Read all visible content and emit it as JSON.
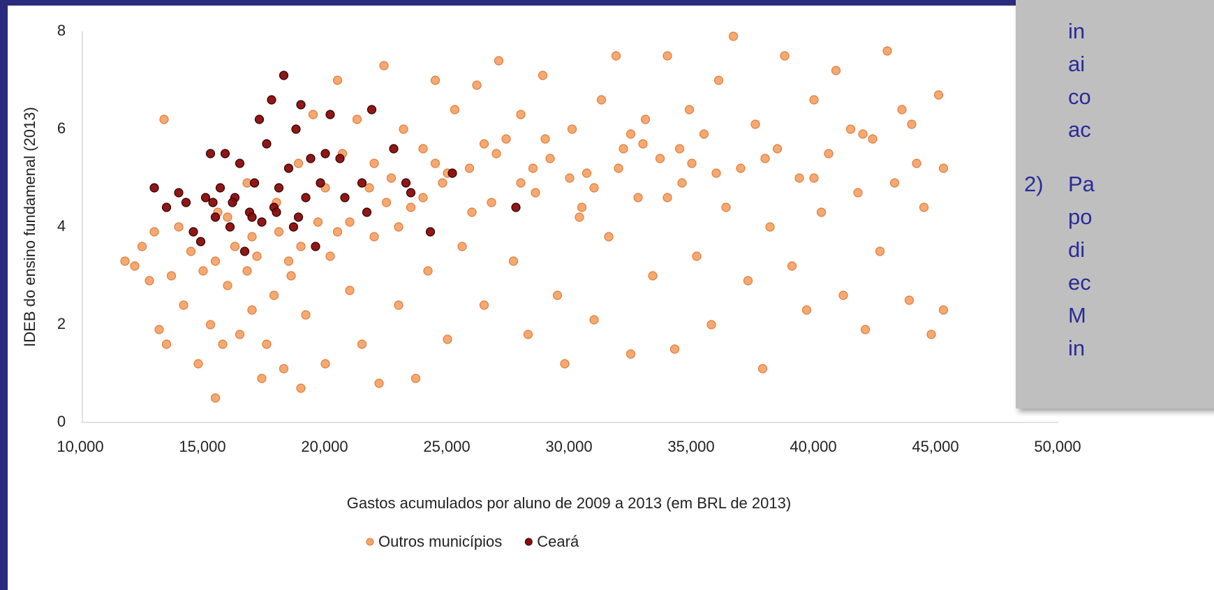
{
  "chart_data": {
    "type": "scatter",
    "x_label": "Gastos acumulados por aluno de 2009 a 2013 (em BRL de 2013)",
    "y_label": "IDEB do ensino fundamenal (2013)",
    "xlim": [
      10000,
      50000
    ],
    "xticks": [
      {
        "value": 10000,
        "label": "10,000"
      },
      {
        "value": 15000,
        "label": "15,000"
      },
      {
        "value": 20000,
        "label": "20,000"
      },
      {
        "value": 25000,
        "label": "25,000"
      },
      {
        "value": 30000,
        "label": "30,000"
      },
      {
        "value": 35000,
        "label": "35,000"
      },
      {
        "value": 40000,
        "label": "40,000"
      },
      {
        "value": 45000,
        "label": "45,000"
      },
      {
        "value": 50000,
        "label": "50,000"
      }
    ],
    "ylim": [
      0,
      8
    ],
    "yticks": [
      0,
      2,
      4,
      6,
      8
    ],
    "grid": false,
    "legend": "bottom",
    "series": [
      {
        "name": "Outros municípios",
        "color": "#f4a46a",
        "x": [
          11800,
          12200,
          12500,
          12800,
          13000,
          13200,
          13400,
          13500,
          13700,
          14000,
          14200,
          14500,
          14800,
          15000,
          15300,
          15500,
          15600,
          15800,
          16000,
          16300,
          16500,
          16800,
          17000,
          17200,
          17400,
          17600,
          17900,
          18100,
          18300,
          18600,
          18900,
          19000,
          19200,
          19500,
          19700,
          20000,
          20200,
          20500,
          20700,
          21000,
          21300,
          21500,
          21800,
          22000,
          22200,
          22400,
          22700,
          23000,
          23200,
          23500,
          23700,
          24000,
          24200,
          24500,
          24800,
          25000,
          25300,
          25600,
          25900,
          26200,
          26500,
          26800,
          27100,
          27400,
          27700,
          28000,
          28300,
          28600,
          28900,
          29200,
          29500,
          29800,
          30100,
          30400,
          30700,
          31000,
          31300,
          31600,
          31900,
          32200,
          32500,
          32800,
          33100,
          33400,
          33700,
          34000,
          34300,
          34600,
          34900,
          35200,
          35500,
          35800,
          36100,
          36400,
          36700,
          37000,
          37300,
          37600,
          37900,
          38200,
          38500,
          38800,
          39100,
          39400,
          39700,
          40000,
          40300,
          40600,
          40900,
          41200,
          41500,
          41800,
          42100,
          42400,
          42700,
          43000,
          43300,
          43600,
          43900,
          44200,
          44500,
          44800,
          45100,
          45300,
          45300,
          16000,
          17000,
          18000,
          19000,
          20000,
          21000,
          22000,
          23000,
          24000,
          25000,
          26000,
          27000,
          28000,
          29000,
          30000,
          31000,
          32000,
          33000,
          34000,
          35000,
          15500,
          16800,
          18500,
          20500,
          22500,
          24500,
          26500,
          28500,
          30500,
          32500,
          34500,
          36000,
          38000,
          40000,
          42000,
          44000
        ],
        "values": [
          3.3,
          3.2,
          3.6,
          2.9,
          3.9,
          1.9,
          6.2,
          1.6,
          3.0,
          4.0,
          2.4,
          3.5,
          1.2,
          3.1,
          2.0,
          0.5,
          4.3,
          1.6,
          2.8,
          3.6,
          1.8,
          4.9,
          2.3,
          3.4,
          0.9,
          1.6,
          2.6,
          3.9,
          1.1,
          3.0,
          5.3,
          0.7,
          2.2,
          6.3,
          4.1,
          1.2,
          3.4,
          7.0,
          5.5,
          2.7,
          6.2,
          1.6,
          4.8,
          3.8,
          0.8,
          7.3,
          5.0,
          2.4,
          6.0,
          4.4,
          0.9,
          5.6,
          3.1,
          7.0,
          4.9,
          1.7,
          6.4,
          3.6,
          5.2,
          6.9,
          2.4,
          4.5,
          7.4,
          5.8,
          3.3,
          6.3,
          1.8,
          4.7,
          7.1,
          5.4,
          2.6,
          1.2,
          6.0,
          4.2,
          5.1,
          2.1,
          6.6,
          3.8,
          7.5,
          5.6,
          1.4,
          4.6,
          6.2,
          3.0,
          5.4,
          7.5,
          1.5,
          4.9,
          6.4,
          3.4,
          5.9,
          2.0,
          7.0,
          4.4,
          7.9,
          5.2,
          2.9,
          6.1,
          1.1,
          4.0,
          5.6,
          7.5,
          3.2,
          5.0,
          2.3,
          6.6,
          4.3,
          5.5,
          7.2,
          2.6,
          6.0,
          4.7,
          1.9,
          5.8,
          3.5,
          7.6,
          4.9,
          6.4,
          2.5,
          5.3,
          4.4,
          1.8,
          6.7,
          2.3,
          5.2,
          4.2,
          3.8,
          4.5,
          3.6,
          4.8,
          4.1,
          5.3,
          4.0,
          4.6,
          5.1,
          4.3,
          5.5,
          4.9,
          5.8,
          5.0,
          4.8,
          5.2,
          5.7,
          4.6,
          5.3,
          3.3,
          3.1,
          3.3,
          3.9,
          4.5,
          5.3,
          5.7,
          5.2,
          4.4,
          5.9,
          5.6,
          5.1,
          5.4,
          5.0,
          5.9,
          6.1
        ]
      },
      {
        "name": "Ceará",
        "color": "#8b0a0a",
        "x": [
          13000,
          13500,
          14000,
          14300,
          14600,
          14900,
          15100,
          15300,
          15500,
          15700,
          15900,
          16100,
          16300,
          16500,
          16700,
          16900,
          17100,
          17300,
          17400,
          17600,
          17800,
          17900,
          18100,
          18300,
          18500,
          18700,
          18800,
          19000,
          19200,
          19400,
          19600,
          19800,
          20000,
          20200,
          20600,
          20800,
          21500,
          21700,
          21900,
          22800,
          23300,
          23500,
          24300,
          25200,
          27800,
          16200,
          17000,
          18000,
          18900,
          15400
        ],
        "values": [
          4.8,
          4.4,
          4.7,
          4.5,
          3.9,
          3.7,
          4.6,
          5.5,
          4.2,
          4.8,
          5.5,
          4.0,
          4.6,
          5.3,
          3.5,
          4.3,
          4.9,
          6.2,
          4.1,
          5.7,
          6.6,
          4.4,
          4.8,
          7.1,
          5.2,
          4.0,
          6.0,
          6.5,
          4.6,
          5.4,
          3.6,
          4.9,
          5.5,
          6.3,
          5.4,
          4.6,
          4.9,
          4.3,
          6.4,
          5.6,
          4.9,
          4.7,
          3.9,
          5.1,
          4.4,
          4.5,
          4.2,
          4.3,
          4.2,
          4.5
        ]
      }
    ]
  },
  "side_note": {
    "item1_lines": [
      "in",
      "ai",
      "co",
      "ac"
    ],
    "item2_number": "2)",
    "item2_lines": [
      "Pa",
      "po",
      "di",
      "ec",
      "M",
      "in"
    ]
  }
}
